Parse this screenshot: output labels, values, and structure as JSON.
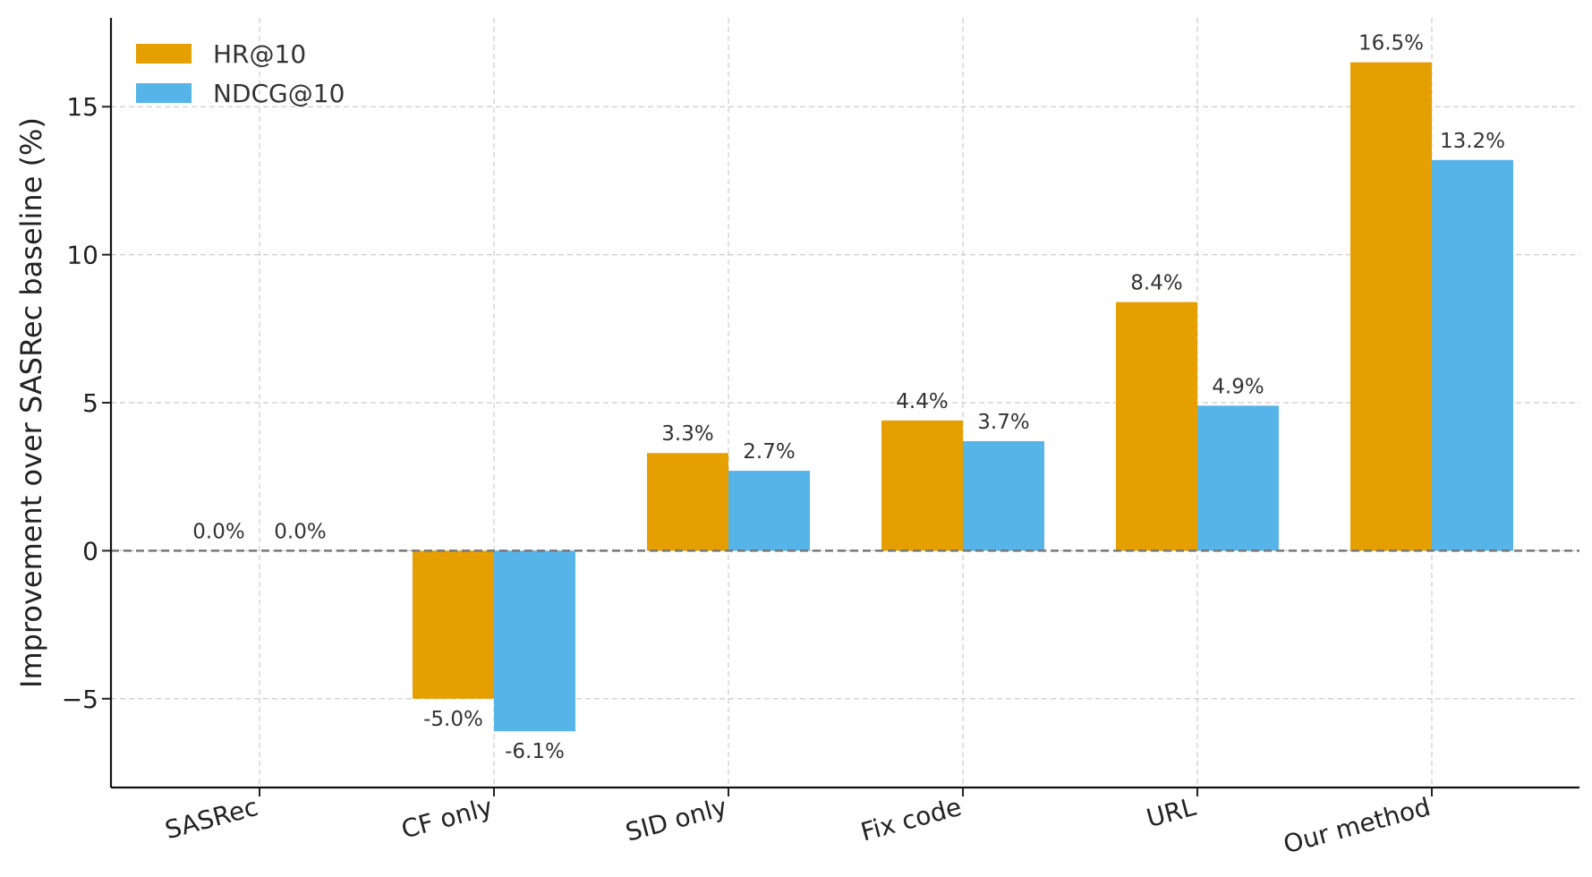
{
  "chart_data": {
    "type": "bar",
    "title": "",
    "xlabel": "",
    "ylabel": "Improvement over SASRec baseline (%)",
    "categories": [
      "SASRec",
      "CF only",
      "SID only",
      "Fix code",
      "URL",
      "Our method"
    ],
    "series": [
      {
        "name": "HR@10",
        "color": "#E69F00",
        "values": [
          0.0,
          -5.0,
          3.3,
          4.4,
          8.4,
          16.5
        ],
        "labels": [
          "0.0%",
          "-5.0%",
          "3.3%",
          "4.4%",
          "8.4%",
          "16.5%"
        ]
      },
      {
        "name": "NDCG@10",
        "color": "#56B4E9",
        "values": [
          0.0,
          -6.1,
          2.7,
          3.7,
          4.9,
          13.2
        ],
        "labels": [
          "0.0%",
          "-6.1%",
          "2.7%",
          "3.7%",
          "4.9%",
          "13.2%"
        ]
      }
    ],
    "ylim": [
      -8,
      18
    ],
    "yticks": [
      -5,
      0,
      5,
      10,
      15
    ],
    "ytick_labels": [
      "−5",
      "0",
      "5",
      "10",
      "15"
    ],
    "grid": true,
    "legend_position": "top-left",
    "baseline": 0
  }
}
